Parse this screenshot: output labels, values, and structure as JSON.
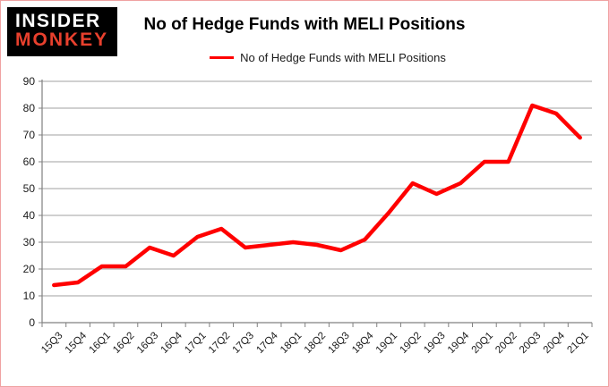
{
  "page": {
    "border_color": "#f0a2a2",
    "background": "#ffffff"
  },
  "logo": {
    "line1": "INSIDER",
    "line2": "MONKEY",
    "bg_color": "#000000",
    "line1_color": "#ffffff",
    "line2_color": "#e8402d"
  },
  "header": {
    "title": "No of Hedge Funds with MELI Positions"
  },
  "chart_data": {
    "type": "line",
    "title": "No of Hedge Funds with MELI Positions",
    "categories": [
      "15Q3",
      "15Q4",
      "16Q1",
      "16Q2",
      "16Q3",
      "16Q4",
      "17Q1",
      "17Q2",
      "17Q3",
      "17Q4",
      "18Q1",
      "18Q2",
      "18Q3",
      "18Q4",
      "19Q1",
      "19Q2",
      "19Q3",
      "19Q4",
      "20Q1",
      "20Q2",
      "20Q3",
      "20Q4",
      "21Q1"
    ],
    "series": [
      {
        "name": "No of Hedge Funds with MELI Positions",
        "color": "#ff0000",
        "values": [
          14,
          15,
          21,
          21,
          28,
          25,
          32,
          35,
          28,
          29,
          30,
          29,
          27,
          31,
          41,
          52,
          48,
          52,
          60,
          60,
          81,
          78,
          69
        ]
      }
    ],
    "xlabel": "",
    "ylabel": "",
    "ylim": [
      0,
      90
    ],
    "yticks": [
      0,
      10,
      20,
      30,
      40,
      50,
      60,
      70,
      80,
      90
    ],
    "grid": "horizontal",
    "gridline_color": "#a0a0a0",
    "axis_color": "#808080",
    "label_color": "#1a1a1a",
    "legend_position": "top"
  }
}
